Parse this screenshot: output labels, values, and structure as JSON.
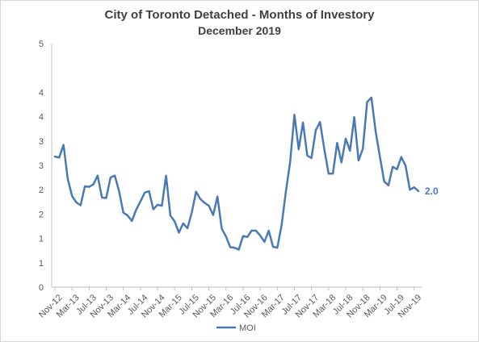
{
  "chart_data": {
    "type": "line",
    "title": "City of Toronto Detached - Months of Investory",
    "subtitle": "December 2019",
    "xlabel": "",
    "ylabel": "",
    "ylim": [
      0,
      5
    ],
    "y_tick_labels": [
      "0",
      "1",
      "1",
      "2",
      "2",
      "3",
      "3",
      "4",
      "4",
      "5"
    ],
    "categories": [
      "Nov-12",
      "Dec-12",
      "Jan-13",
      "Feb-13",
      "Mar-13",
      "Apr-13",
      "May-13",
      "Jun-13",
      "Jul-13",
      "Aug-13",
      "Sep-13",
      "Oct-13",
      "Nov-13",
      "Dec-13",
      "Jan-14",
      "Feb-14",
      "Mar-14",
      "Apr-14",
      "May-14",
      "Jun-14",
      "Jul-14",
      "Aug-14",
      "Sep-14",
      "Oct-14",
      "Nov-14",
      "Dec-14",
      "Jan-15",
      "Feb-15",
      "Mar-15",
      "Apr-15",
      "May-15",
      "Jun-15",
      "Jul-15",
      "Aug-15",
      "Sep-15",
      "Oct-15",
      "Nov-15",
      "Dec-15",
      "Jan-16",
      "Feb-16",
      "Mar-16",
      "Apr-16",
      "May-16",
      "Jun-16",
      "Jul-16",
      "Aug-16",
      "Sep-16",
      "Oct-16",
      "Nov-16",
      "Dec-16",
      "Jan-17",
      "Feb-17",
      "Mar-17",
      "Apr-17",
      "May-17",
      "Jun-17",
      "Jul-17",
      "Aug-17",
      "Sep-17",
      "Oct-17",
      "Nov-17",
      "Dec-17",
      "Jan-18",
      "Feb-18",
      "Mar-18",
      "Apr-18",
      "May-18",
      "Jun-18",
      "Jul-18",
      "Aug-18",
      "Sep-18",
      "Oct-18",
      "Nov-18",
      "Dec-18",
      "Jan-19",
      "Feb-19",
      "Mar-19",
      "Apr-19",
      "May-19",
      "Jun-19",
      "Jul-19",
      "Aug-19",
      "Sep-19",
      "Oct-19",
      "Nov-19",
      "Dec-19"
    ],
    "x_tick_labels": [
      "Nov-12",
      "Mar-13",
      "Jul-13",
      "Nov-13",
      "Mar-14",
      "Jul-14",
      "Nov-14",
      "Mar-15",
      "Jul-15",
      "Nov-15",
      "Mar-16",
      "Jul-16",
      "Nov-16",
      "Mar-17",
      "Jul-17",
      "Nov-17",
      "Mar-18",
      "Jul-18",
      "Nov-18",
      "Mar-19",
      "Jul-19",
      "Nov-19"
    ],
    "series": [
      {
        "name": "MOI",
        "color": "#4a7ab5",
        "values": [
          2.68,
          2.66,
          2.92,
          2.22,
          1.87,
          1.74,
          1.68,
          2.07,
          2.06,
          2.11,
          2.29,
          1.84,
          1.83,
          2.25,
          2.29,
          1.97,
          1.53,
          1.47,
          1.36,
          1.59,
          1.76,
          1.94,
          1.97,
          1.6,
          1.69,
          1.67,
          2.29,
          1.47,
          1.35,
          1.12,
          1.31,
          1.21,
          1.53,
          1.96,
          1.81,
          1.73,
          1.67,
          1.48,
          1.86,
          1.2,
          1.04,
          0.82,
          0.81,
          0.77,
          1.05,
          1.03,
          1.16,
          1.16,
          1.06,
          0.93,
          1.16,
          0.83,
          0.81,
          1.27,
          1.96,
          2.57,
          3.54,
          2.83,
          3.38,
          2.7,
          2.65,
          3.22,
          3.39,
          2.83,
          2.33,
          2.33,
          2.96,
          2.56,
          3.05,
          2.8,
          3.49,
          2.6,
          2.84,
          3.8,
          3.89,
          3.19,
          2.67,
          2.17,
          2.09,
          2.47,
          2.42,
          2.67,
          2.49,
          2.0,
          2.05,
          1.97
        ]
      }
    ],
    "end_label": "2.0",
    "grid": false,
    "legend": "bottom"
  }
}
